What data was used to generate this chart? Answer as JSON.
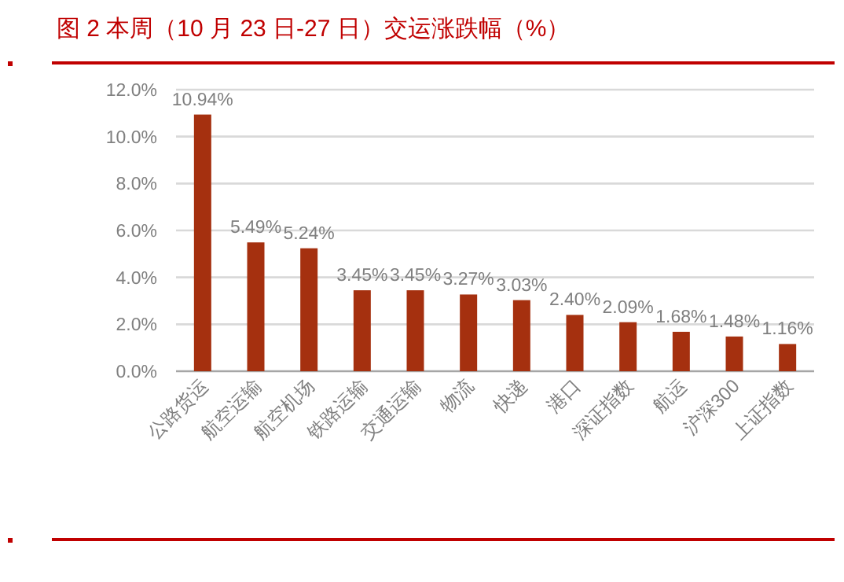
{
  "chart_data": {
    "type": "bar",
    "title": "图 2  本周（10 月 23 日-27 日）交运涨跌幅（%）",
    "categories": [
      "公路货运",
      "航空运输",
      "航空机场",
      "铁路运输",
      "交通运输",
      "物流",
      "快递",
      "港口",
      "深证指数",
      "航运",
      "沪深300",
      "上证指数"
    ],
    "values": [
      10.94,
      5.49,
      5.24,
      3.45,
      3.45,
      3.27,
      3.03,
      2.4,
      2.09,
      1.68,
      1.48,
      1.16
    ],
    "value_labels": [
      "10.94%",
      "5.49%",
      "5.24%",
      "3.45%",
      "3.45%",
      "3.27%",
      "3.03%",
      "2.40%",
      "2.09%",
      "1.68%",
      "1.48%",
      "1.16%"
    ],
    "color": "#a5300f",
    "ylim": [
      0,
      12
    ],
    "yticks": [
      {
        "value": 0,
        "label": "0.0%"
      },
      {
        "value": 2,
        "label": "2.0%"
      },
      {
        "value": 4,
        "label": "4.0%"
      },
      {
        "value": 6,
        "label": "6.0%"
      },
      {
        "value": 8,
        "label": "8.0%"
      },
      {
        "value": 10,
        "label": "10.0%"
      },
      {
        "value": 12,
        "label": "12.0%"
      }
    ],
    "grid": "y"
  }
}
